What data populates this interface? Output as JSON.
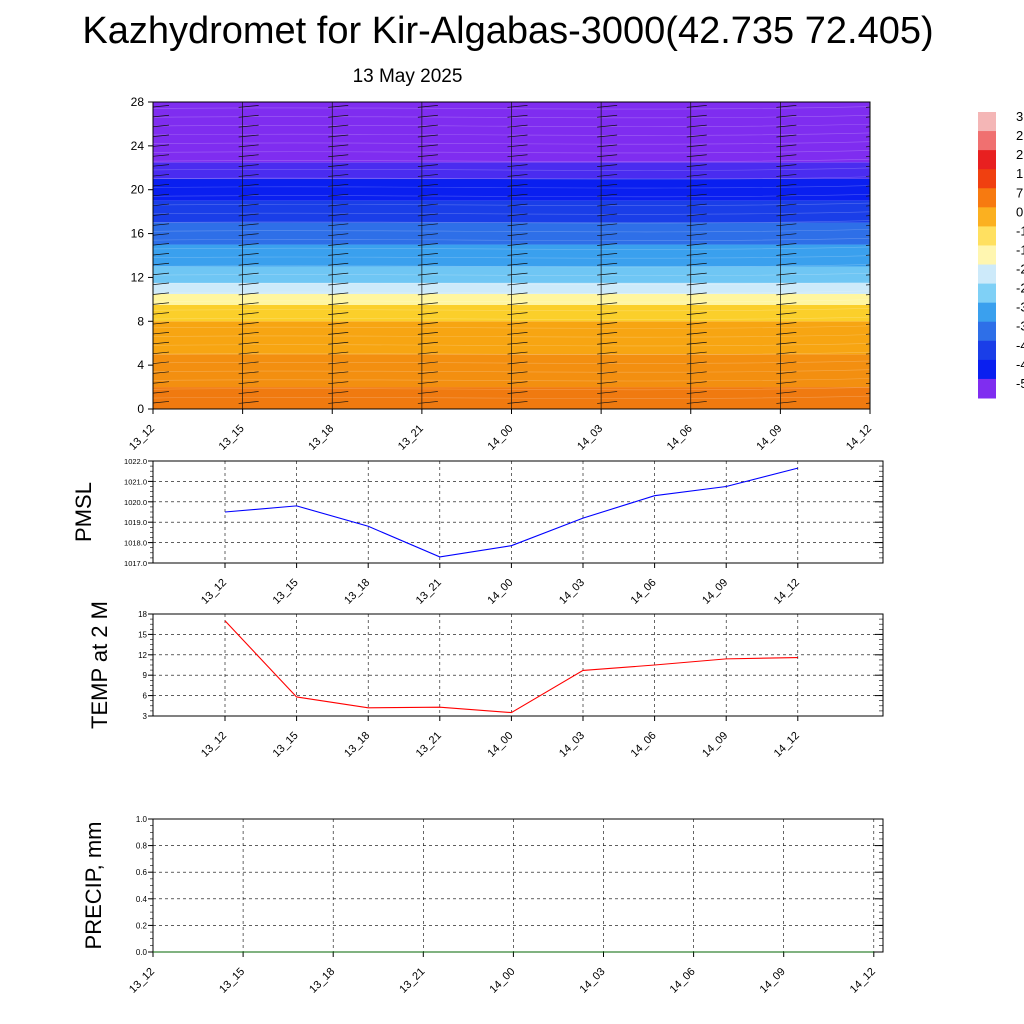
{
  "title": "Kazhydromet for Kir-Algabas-3000(42.735 72.405)",
  "subtitle": "13 May 2025",
  "colors": {
    "pmsl_line": "#0000ff",
    "temp_line": "#ff0000",
    "precip_line": "#006400",
    "grid": "#000000"
  },
  "chart_data": [
    {
      "type": "heatmap",
      "name_hint": "cross-section",
      "x_ticks": [
        "13_12",
        "13_15",
        "13_18",
        "13_21",
        "14_00",
        "14_03",
        "14_06",
        "14_09",
        "14_12"
      ],
      "y_ticks": [
        0,
        4,
        8,
        12,
        16,
        20,
        24,
        28
      ],
      "ylim": [
        0,
        28
      ],
      "color_bands": [
        {
          "from": 0,
          "to": 2,
          "color": "#f07a10"
        },
        {
          "from": 2,
          "to": 5,
          "color": "#f38f10"
        },
        {
          "from": 5,
          "to": 8,
          "color": "#f7a512"
        },
        {
          "from": 8,
          "to": 9.5,
          "color": "#fbcf2a"
        },
        {
          "from": 9.5,
          "to": 10.5,
          "color": "#fff6a0"
        },
        {
          "from": 10.5,
          "to": 11.5,
          "color": "#cdeafa"
        },
        {
          "from": 11.5,
          "to": 13,
          "color": "#6fc6f4"
        },
        {
          "from": 13,
          "to": 15,
          "color": "#3aa0ee"
        },
        {
          "from": 15,
          "to": 17,
          "color": "#2e6fe8"
        },
        {
          "from": 17,
          "to": 19,
          "color": "#1a3ee8"
        },
        {
          "from": 19,
          "to": 21,
          "color": "#0a1ff0"
        },
        {
          "from": 21,
          "to": 22.5,
          "color": "#4a2cf0"
        },
        {
          "from": 22.5,
          "to": 28,
          "color": "#7f2df0"
        }
      ],
      "colorbar_labels": [
        "3",
        "2",
        "2",
        "1",
        "7",
        "0",
        "-1",
        "-1",
        "-2",
        "-2",
        "-3",
        "-3",
        "-4",
        "-4",
        "-5"
      ],
      "colorbar_colors": [
        "#f4b6b6",
        "#f07070",
        "#e82020",
        "#f04010",
        "#f77a10",
        "#fbb020",
        "#ffe060",
        "#fff6b0",
        "#cdeafa",
        "#7fd0f6",
        "#3aa0ee",
        "#2e6fe8",
        "#1a3ee8",
        "#0a1ff0",
        "#7f2df0"
      ]
    },
    {
      "type": "line",
      "ylabel": "PMSL",
      "x": [
        "13_12",
        "13_15",
        "13_18",
        "13_21",
        "14_00",
        "14_03",
        "14_06",
        "14_09",
        "14_12"
      ],
      "y_ticks": [
        "1017.0",
        "1018.0",
        "1019.0",
        "1020.0",
        "1021.0",
        "1022.0"
      ],
      "ylim": [
        1017,
        1022
      ],
      "series": [
        {
          "values": [
            1019.5,
            1019.8,
            1018.8,
            1017.3,
            1017.85,
            1019.2,
            1020.3,
            1020.75,
            1021.65
          ]
        }
      ]
    },
    {
      "type": "line",
      "ylabel": "TEMP at 2 M",
      "x": [
        "13_12",
        "13_15",
        "13_18",
        "13_21",
        "14_00",
        "14_03",
        "14_06",
        "14_09",
        "14_12"
      ],
      "y_ticks": [
        "3",
        "6",
        "9",
        "12",
        "15",
        "18"
      ],
      "ylim": [
        3,
        18
      ],
      "series": [
        {
          "values": [
            17.0,
            5.8,
            4.2,
            4.3,
            3.5,
            9.7,
            10.5,
            11.4,
            11.6
          ]
        }
      ]
    },
    {
      "type": "line",
      "ylabel": "PRECIP, mm",
      "x": [
        "13_12",
        "13_15",
        "13_18",
        "13_21",
        "14_00",
        "14_03",
        "14_06",
        "14_09",
        "14_12"
      ],
      "y_ticks": [
        "0.0",
        "0.2",
        "0.4",
        "0.6",
        "0.8",
        "1.0"
      ],
      "ylim": [
        0,
        1
      ],
      "series": [
        {
          "values": [
            0,
            0,
            0,
            0,
            0,
            0,
            0,
            0,
            0
          ]
        }
      ]
    }
  ]
}
